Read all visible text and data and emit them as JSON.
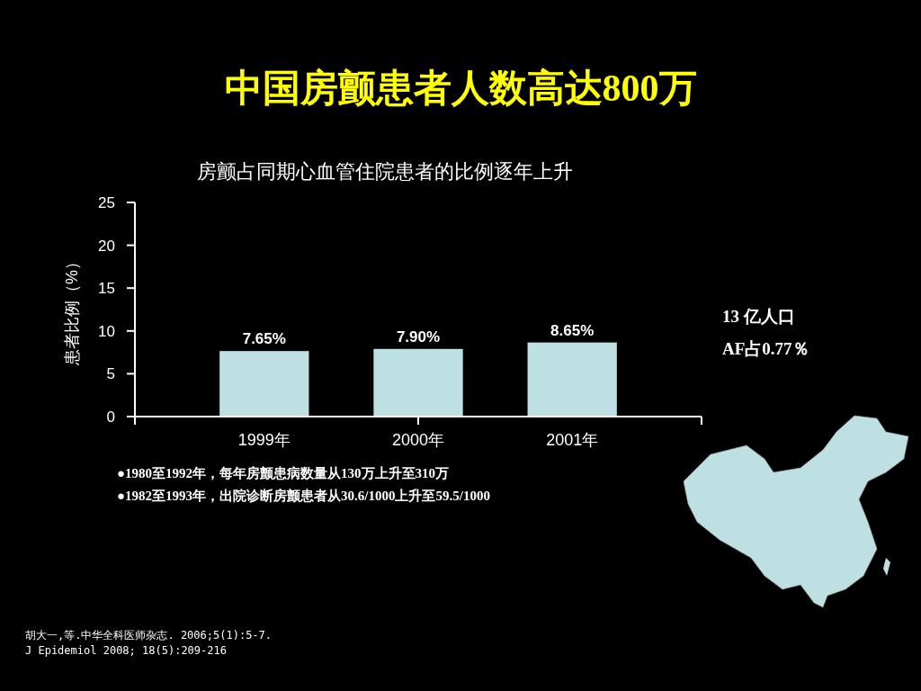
{
  "chart_data": {
    "type": "bar",
    "title": "中国房颤患者人数高达800万",
    "subtitle": "房颤占同期心血管住院患者的比例逐年上升",
    "ylabel": "患者比例（%）",
    "categories": [
      "1999年",
      "2000年",
      "2001年"
    ],
    "values": [
      7.65,
      7.9,
      8.65
    ],
    "value_labels": [
      "7.65%",
      "7.90%",
      "8.65%"
    ],
    "color": "#bfe0e3",
    "ylim": [
      0,
      25
    ],
    "yticks": [
      0,
      5,
      10,
      15,
      20,
      25
    ],
    "grid": false,
    "annotations": [
      "13 亿人口",
      "AF占0.77％",
      "●1980至1992年，每年房颤患病数量从130万上升至310万",
      "●1982至1993年，出院诊断房颤患者从30.6/1000上升至59.5/1000",
      "胡大一,等.中华全科医师杂志. 2006;5(1):5-7.",
      "J Epidemiol 2008; 18(5):209-216"
    ]
  }
}
